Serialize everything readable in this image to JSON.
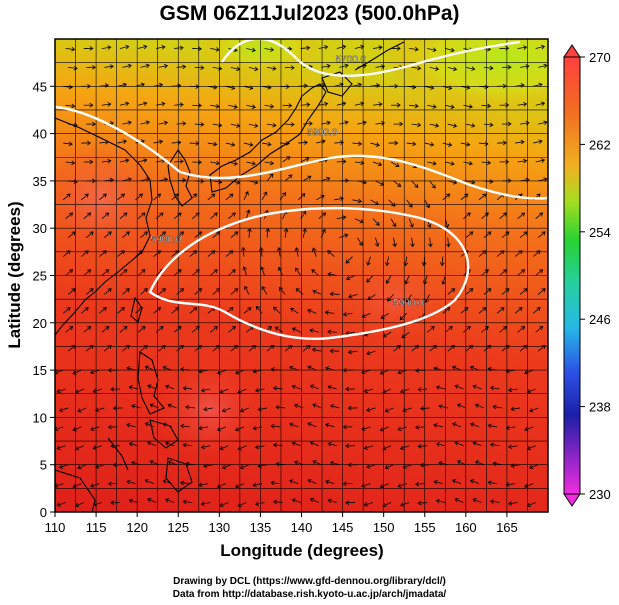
{
  "title": "GSM 06Z11Jul2023 (500.0hPa)",
  "map": {
    "xlabel": "Longitude (degrees)",
    "ylabel": "Latitude (degrees)",
    "xlim": [
      110,
      170
    ],
    "ylim": [
      0,
      50
    ],
    "xticks": [
      110,
      115,
      120,
      125,
      130,
      135,
      140,
      145,
      150,
      155,
      160,
      165
    ],
    "yticks": [
      0,
      5,
      10,
      15,
      20,
      25,
      30,
      35,
      40,
      45
    ],
    "grid": true,
    "shaded_field_range": [
      230,
      270
    ],
    "contours": [
      {
        "label": "5700.0",
        "label_lon": 146,
        "label_lat": 47.5
      },
      {
        "label": "5800.0",
        "label_lon": 142.5,
        "label_lat": 39.8
      },
      {
        "label": "5900.0",
        "label_lon": 123.5,
        "label_lat": 28.5
      },
      {
        "label": "5900.0",
        "label_lon": 153,
        "label_lat": 21.8
      }
    ],
    "colors": {
      "warm": "#e8351f",
      "mid": "#f07a16",
      "cool": "#c9e617",
      "contour": "#ffffff",
      "vector": "#000000"
    }
  },
  "colorbar": {
    "tick_labels": [
      "270",
      "262",
      "254",
      "246",
      "238",
      "230"
    ],
    "tick_values": [
      270,
      262,
      254,
      246,
      238,
      230
    ],
    "min": 230,
    "max": 270
  },
  "footer": {
    "line1": "Drawing by DCL (https://www.gfd-dennou.org/library/dcl/)",
    "line2": "Data from http://database.rish.kyoto-u.ac.jp/arch/jmadata/"
  }
}
